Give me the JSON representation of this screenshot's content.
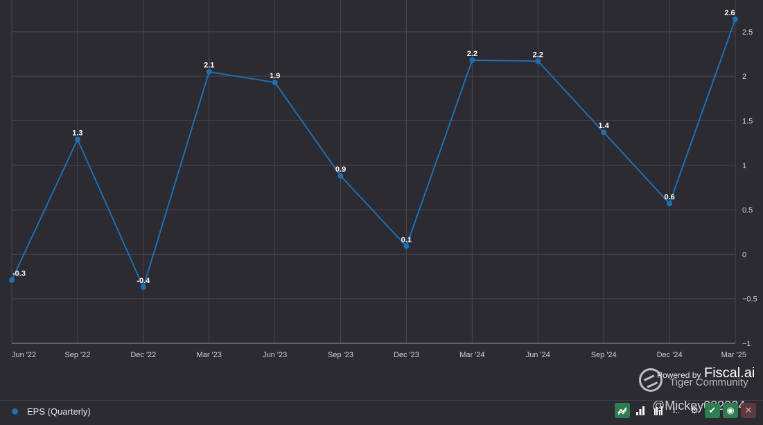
{
  "chart_data": {
    "type": "line",
    "categories": [
      "Jun '22",
      "Sep '22",
      "Dec '22",
      "Mar '23",
      "Jun '23",
      "Sep '23",
      "Dec '23",
      "Mar '24",
      "Jun '24",
      "Sep '24",
      "Dec '24",
      "Mar '25"
    ],
    "series": [
      {
        "name": "EPS (Quarterly)",
        "values": [
          -0.29,
          1.29,
          -0.37,
          2.05,
          1.93,
          0.88,
          0.09,
          2.18,
          2.17,
          1.37,
          0.57,
          2.64
        ],
        "labels": [
          "-0.3",
          "1.3",
          "-0.4",
          "2.1",
          "1.9",
          "0.9",
          "0.1",
          "2.2",
          "2.2",
          "1.4",
          "0.6",
          "2.6"
        ],
        "color": "#1f6fb2"
      }
    ],
    "yticks": [
      "2.5",
      "2",
      "1.5",
      "1",
      "0.5",
      "0",
      "−0.5",
      "−1"
    ],
    "ytick_values": [
      2.5,
      2,
      1.5,
      1,
      0.5,
      0,
      -0.5,
      -1
    ],
    "ylim": [
      -1,
      2.74
    ],
    "grid": true,
    "legend_position": "bottom-left"
  },
  "legend": {
    "label": "EPS (Quarterly)",
    "color": "#1f6fb2"
  },
  "watermark": {
    "powered": "Powered by",
    "brand": "Fiscal.ai",
    "community": "Tiger Community",
    "user": "@Mickey082024"
  },
  "toolbar": {
    "line_icon": "line-chart-icon",
    "bar_icon": "bar-chart-icon",
    "grouped_bar_icon": "grouped-bar-icon",
    "more_label": "I..",
    "settings_icon": "gear-icon",
    "check_icon": "check-icon",
    "eye_icon": "eye-icon",
    "close_icon": "close-icon"
  }
}
